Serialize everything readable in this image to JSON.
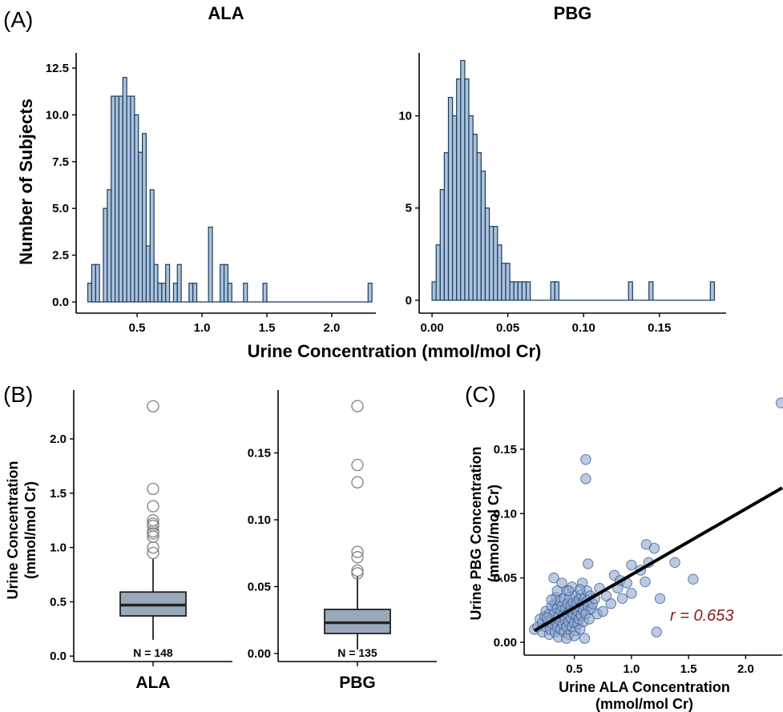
{
  "panel_labels": {
    "a": "(A)",
    "b": "(B)",
    "c": "(C)"
  },
  "panel_a": {
    "shared_xlabel": "Urine Concentration (mmol/mol Cr)",
    "shared_ylabel": "Number of Subjects"
  },
  "panel_b": {
    "ylabel_line1": "Urine Concentration",
    "ylabel_line2": "(mmol/mol Cr)"
  },
  "panel_c": {
    "xlabel_line1": "Urine ALA Concentration",
    "xlabel_line2": "(mmol/mol Cr)",
    "ylabel_line1": "Urine PBG Concentration",
    "ylabel_line2": "(mmol/mol Cr)",
    "annotation": "r = 0.653"
  },
  "colors": {
    "bar_fill": "#a9c3de",
    "bar_stroke": "#1f3a5a",
    "box_fill": "#9aa9ba",
    "point_fill": "#8fa9cf",
    "point_stroke": "#3c5f94",
    "annotation": "#8b1a1a"
  },
  "chart_data": [
    {
      "type": "bar",
      "title": "ALA",
      "bin_width": 0.03,
      "x_start": 0.12,
      "y_ticks": [
        0,
        2.5,
        5.0,
        7.5,
        10.0,
        12.5
      ],
      "y_tick_labels": [
        "0.0",
        "2.5",
        "5.0",
        "7.5",
        "10.0",
        "12.5"
      ],
      "x_ticks": [
        0.5,
        1.0,
        1.5,
        2.0
      ],
      "x_tick_labels": [
        "0.5",
        "1.0",
        "1.5",
        "2.0"
      ],
      "xlim": [
        0.03,
        2.34
      ],
      "ylim": [
        -0.6,
        13.4
      ],
      "values": [
        1,
        2,
        2,
        0,
        5,
        6,
        11,
        11,
        11,
        12,
        11,
        11,
        10,
        8,
        9,
        3,
        6,
        2,
        1,
        1,
        2,
        0,
        1,
        2,
        0,
        0,
        1,
        1,
        0,
        0,
        0,
        4,
        0,
        0,
        2,
        2,
        1,
        0,
        0,
        0,
        1,
        0,
        0,
        0,
        0,
        1,
        0,
        0,
        0,
        0,
        0,
        0,
        0,
        0,
        0,
        0,
        0,
        0,
        0,
        0,
        0,
        0,
        0,
        0,
        0,
        0,
        0,
        0,
        0,
        0,
        0,
        0,
        1
      ]
    },
    {
      "type": "bar",
      "title": "PBG",
      "bin_width": 0.0027,
      "x_start": 0.0,
      "y_ticks": [
        0,
        5,
        10
      ],
      "y_tick_labels": [
        "0",
        "5",
        "10"
      ],
      "x_ticks": [
        0.0,
        0.05,
        0.1,
        0.15
      ],
      "x_tick_labels": [
        "0.00",
        "0.05",
        "0.10",
        "0.15"
      ],
      "xlim": [
        -0.0085,
        0.194
      ],
      "ylim": [
        -0.7,
        13.5
      ],
      "values": [
        1,
        3,
        6,
        8,
        11,
        10,
        12,
        13,
        12,
        10,
        9,
        8,
        7,
        5,
        4,
        4,
        3,
        2,
        2,
        1,
        1,
        1,
        1,
        1,
        0,
        0,
        0,
        0,
        0,
        1,
        1,
        0,
        0,
        0,
        0,
        0,
        0,
        0,
        0,
        0,
        0,
        0,
        0,
        0,
        0,
        0,
        0,
        0,
        1,
        0,
        0,
        0,
        0,
        1,
        0,
        0,
        0,
        0,
        0,
        0,
        0,
        0,
        0,
        0,
        0,
        0,
        0,
        0,
        1
      ]
    },
    {
      "type": "box",
      "category": "ALA",
      "n_label": "N = 148",
      "q1": 0.37,
      "median": 0.47,
      "q3": 0.59,
      "whisker_low": 0.15,
      "whisker_high": 0.9,
      "outliers": [
        0.95,
        1.0,
        1.1,
        1.13,
        1.15,
        1.2,
        1.22,
        1.25,
        1.38,
        1.54,
        2.3
      ],
      "y_ticks": [
        0.0,
        0.5,
        1.0,
        1.5,
        2.0
      ],
      "y_tick_labels": [
        "0.0",
        "0.5",
        "1.0",
        "1.5",
        "2.0"
      ],
      "ylim": [
        -0.05,
        2.45
      ]
    },
    {
      "type": "box",
      "category": "PBG",
      "n_label": "N = 135",
      "q1": 0.015,
      "median": 0.023,
      "q3": 0.033,
      "whisker_low": 0.003,
      "whisker_high": 0.058,
      "outliers": [
        0.06,
        0.062,
        0.072,
        0.076,
        0.128,
        0.141,
        0.185
      ],
      "y_ticks": [
        0.0,
        0.05,
        0.1,
        0.15
      ],
      "y_tick_labels": [
        "0.00",
        "0.05",
        "0.10",
        "0.15"
      ],
      "ylim": [
        -0.006,
        0.197
      ]
    },
    {
      "type": "scatter",
      "x_ticks": [
        0.5,
        1.0,
        1.5,
        2.0
      ],
      "x_tick_labels": [
        "0.5",
        "1.0",
        "1.5",
        "2.0"
      ],
      "y_ticks": [
        0.0,
        0.05,
        0.1,
        0.15
      ],
      "y_tick_labels": [
        "0.00",
        "0.05",
        "0.10",
        "0.15"
      ],
      "xlim": [
        0.06,
        2.32
      ],
      "ylim": [
        -0.01,
        0.196
      ],
      "trend_line": {
        "x": [
          0.15,
          2.32
        ],
        "y": [
          0.009,
          0.12
        ]
      },
      "points": [
        [
          0.15,
          0.01
        ],
        [
          0.18,
          0.012
        ],
        [
          0.2,
          0.018
        ],
        [
          0.22,
          0.008
        ],
        [
          0.22,
          0.015
        ],
        [
          0.24,
          0.02
        ],
        [
          0.25,
          0.012
        ],
        [
          0.25,
          0.024
        ],
        [
          0.27,
          0.016
        ],
        [
          0.28,
          0.006
        ],
        [
          0.28,
          0.022
        ],
        [
          0.29,
          0.01
        ],
        [
          0.3,
          0.018
        ],
        [
          0.3,
          0.028
        ],
        [
          0.31,
          0.014
        ],
        [
          0.32,
          0.05
        ],
        [
          0.32,
          0.022
        ],
        [
          0.33,
          0.008
        ],
        [
          0.33,
          0.03
        ],
        [
          0.34,
          0.016
        ],
        [
          0.34,
          0.035
        ],
        [
          0.35,
          0.012
        ],
        [
          0.35,
          0.026
        ],
        [
          0.36,
          0.02
        ],
        [
          0.36,
          0.004
        ],
        [
          0.37,
          0.032
        ],
        [
          0.37,
          0.017
        ],
        [
          0.38,
          0.024
        ],
        [
          0.38,
          0.01
        ],
        [
          0.39,
          0.028
        ],
        [
          0.39,
          0.046
        ],
        [
          0.4,
          0.014
        ],
        [
          0.4,
          0.021
        ],
        [
          0.41,
          0.034
        ],
        [
          0.41,
          0.008
        ],
        [
          0.42,
          0.018
        ],
        [
          0.42,
          0.026
        ],
        [
          0.43,
          0.012
        ],
        [
          0.43,
          0.04
        ],
        [
          0.44,
          0.022
        ],
        [
          0.44,
          0.03
        ],
        [
          0.45,
          0.016
        ],
        [
          0.45,
          0.006
        ],
        [
          0.46,
          0.024
        ],
        [
          0.46,
          0.035
        ],
        [
          0.47,
          0.019
        ],
        [
          0.47,
          0.028
        ],
        [
          0.48,
          0.012
        ],
        [
          0.48,
          0.043
        ],
        [
          0.49,
          0.022
        ],
        [
          0.49,
          0.031
        ],
        [
          0.5,
          0.015
        ],
        [
          0.5,
          0.026
        ],
        [
          0.51,
          0.036
        ],
        [
          0.51,
          0.009
        ],
        [
          0.52,
          0.02
        ],
        [
          0.52,
          0.03
        ],
        [
          0.53,
          0.014
        ],
        [
          0.53,
          0.024
        ],
        [
          0.54,
          0.033
        ],
        [
          0.54,
          0.018
        ],
        [
          0.55,
          0.027
        ],
        [
          0.55,
          0.01
        ],
        [
          0.56,
          0.037
        ],
        [
          0.56,
          0.021
        ],
        [
          0.57,
          0.03
        ],
        [
          0.57,
          0.046
        ],
        [
          0.58,
          0.016
        ],
        [
          0.58,
          0.025
        ],
        [
          0.59,
          0.034
        ],
        [
          0.59,
          0.003
        ],
        [
          0.6,
          0.127
        ],
        [
          0.6,
          0.142
        ],
        [
          0.6,
          0.022
        ],
        [
          0.61,
          0.032
        ],
        [
          0.61,
          0.04
        ],
        [
          0.62,
          0.061
        ],
        [
          0.62,
          0.028
        ],
        [
          0.63,
          0.018
        ],
        [
          0.64,
          0.036
        ],
        [
          0.65,
          0.026
        ],
        [
          0.66,
          0.03
        ],
        [
          0.68,
          0.034
        ],
        [
          0.7,
          0.022
        ],
        [
          0.72,
          0.042
        ],
        [
          0.75,
          0.024
        ],
        [
          0.78,
          0.036
        ],
        [
          0.82,
          0.03
        ],
        [
          0.85,
          0.052
        ],
        [
          0.88,
          0.042
        ],
        [
          0.9,
          0.048
        ],
        [
          0.92,
          0.034
        ],
        [
          0.96,
          0.046
        ],
        [
          1.0,
          0.06
        ],
        [
          1.0,
          0.038
        ],
        [
          1.08,
          0.056
        ],
        [
          1.12,
          0.047
        ],
        [
          1.13,
          0.076
        ],
        [
          1.15,
          0.062
        ],
        [
          1.2,
          0.073
        ],
        [
          1.22,
          0.008
        ],
        [
          1.25,
          0.034
        ],
        [
          1.38,
          0.062
        ],
        [
          1.54,
          0.049
        ],
        [
          2.31,
          0.186
        ],
        [
          0.35,
          0.04
        ],
        [
          0.45,
          0.04
        ],
        [
          0.5,
          0.005
        ],
        [
          0.43,
          0.003
        ],
        [
          0.3,
          0.033
        ],
        [
          0.26,
          0.019
        ],
        [
          0.55,
          0.041
        ]
      ]
    }
  ]
}
